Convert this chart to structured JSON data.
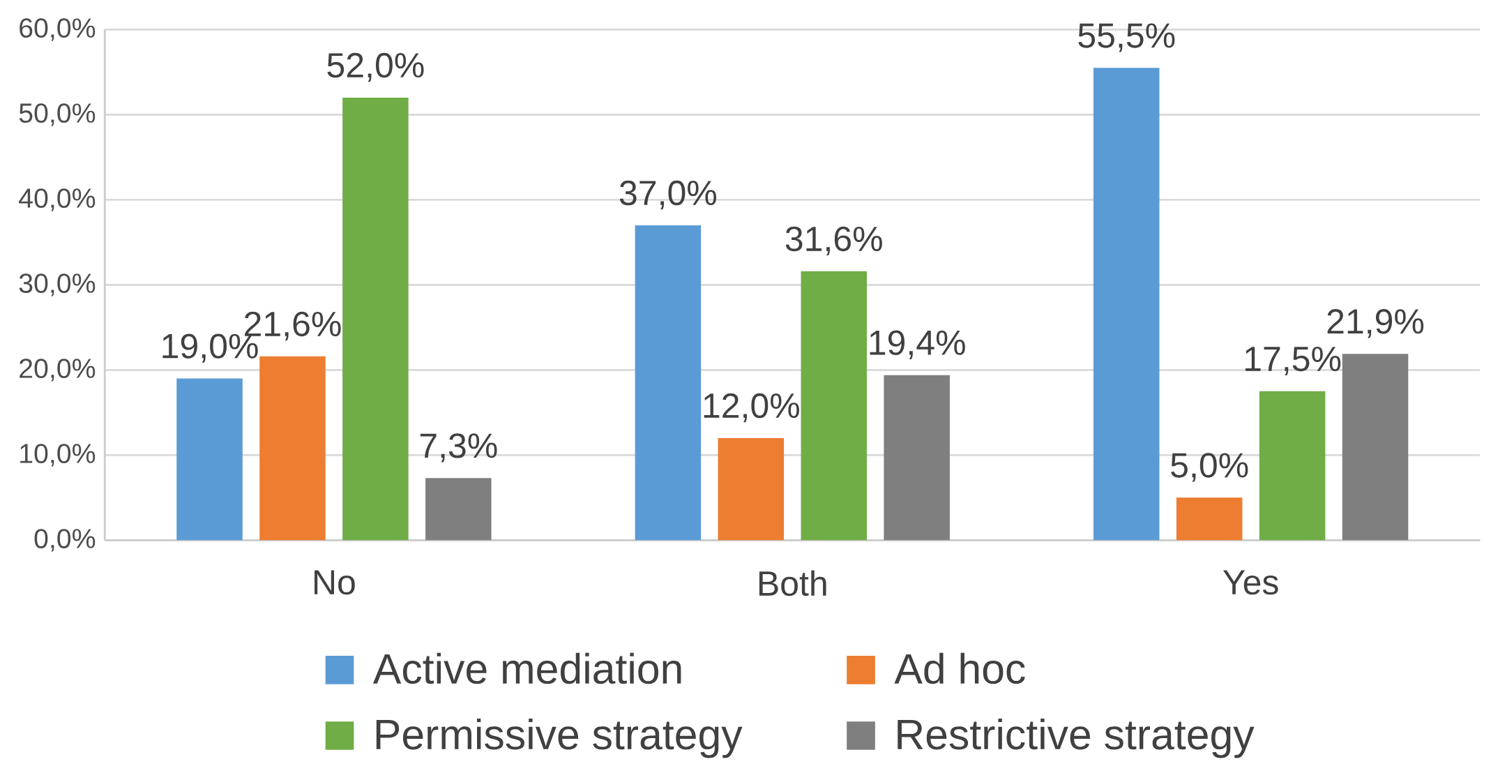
{
  "chart_data": {
    "type": "bar",
    "categories": [
      "No",
      "Both",
      "Yes"
    ],
    "series": [
      {
        "name": "Active mediation",
        "color": "#5b9bd5",
        "values": [
          19.0,
          37.0,
          55.5
        ],
        "value_labels": [
          "19,0%",
          "37,0%",
          "55,5%"
        ]
      },
      {
        "name": "Ad hoc",
        "color": "#ed7d31",
        "values": [
          21.6,
          12.0,
          5.0
        ],
        "value_labels": [
          "21,6%",
          "12,0%",
          "5,0%"
        ]
      },
      {
        "name": "Permissive strategy",
        "color": "#70ad47",
        "values": [
          52.0,
          31.6,
          17.5
        ],
        "value_labels": [
          "52,0%",
          "31,6%",
          "17,5%"
        ]
      },
      {
        "name": "Restrictive strategy",
        "color": "#7f7f7f",
        "values": [
          7.3,
          19.4,
          21.9
        ],
        "value_labels": [
          "7,3%",
          "19,4%",
          "21,9%"
        ]
      }
    ],
    "ylim": [
      0,
      60
    ],
    "yticks": [
      {
        "value": 0,
        "label": "0,0%"
      },
      {
        "value": 10,
        "label": "10,0%"
      },
      {
        "value": 20,
        "label": "20,0%"
      },
      {
        "value": 30,
        "label": "30,0%"
      },
      {
        "value": 40,
        "label": "40,0%"
      },
      {
        "value": 50,
        "label": "50,0%"
      },
      {
        "value": 60,
        "label": "60,0%"
      }
    ],
    "grid": "y",
    "legend": "bottom"
  }
}
